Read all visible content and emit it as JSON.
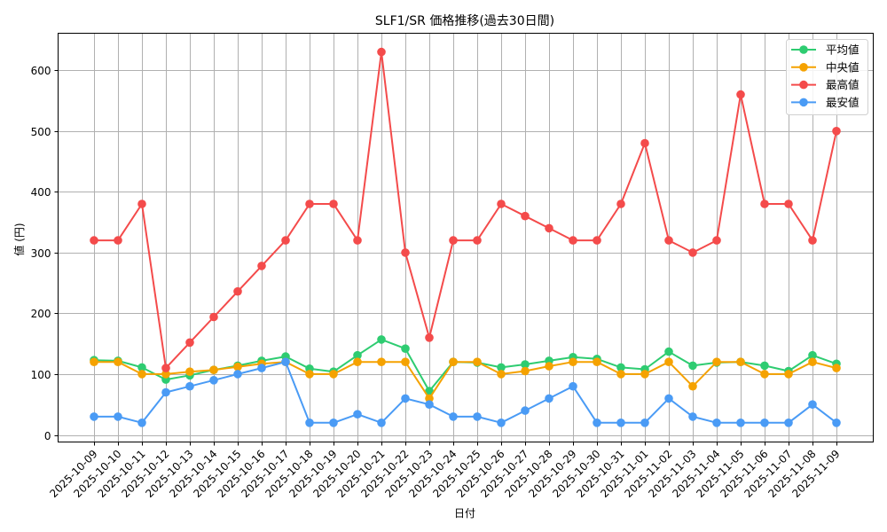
{
  "chart_data": {
    "type": "line",
    "title": "SLF1/SR 価格推移(過去30日間)",
    "xlabel": "日付",
    "ylabel": "値 (円)",
    "ylim": [
      -12,
      660
    ],
    "yticks": [
      0,
      100,
      200,
      300,
      400,
      500,
      600
    ],
    "grid": true,
    "legend_position": "upper right",
    "categories": [
      "2025-10-09",
      "2025-10-10",
      "2025-10-11",
      "2025-10-12",
      "2025-10-13",
      "2025-10-14",
      "2025-10-15",
      "2025-10-16",
      "2025-10-17",
      "2025-10-18",
      "2025-10-19",
      "2025-10-20",
      "2025-10-21",
      "2025-10-22",
      "2025-10-23",
      "2025-10-24",
      "2025-10-25",
      "2025-10-26",
      "2025-10-27",
      "2025-10-28",
      "2025-10-29",
      "2025-10-30",
      "2025-10-31",
      "2025-11-01",
      "2025-11-02",
      "2025-11-03",
      "2025-11-04",
      "2025-11-05",
      "2025-11-06",
      "2025-11-07",
      "2025-11-08",
      "2025-11-09"
    ],
    "series": [
      {
        "name": "平均値",
        "color": "#2ecc71",
        "values": [
          123,
          122,
          111,
          91,
          98,
          107,
          114,
          122,
          129,
          109,
          104,
          131,
          157,
          142,
          72,
          120,
          119,
          111,
          116,
          122,
          128,
          125,
          111,
          108,
          137,
          114,
          119,
          120,
          114,
          105,
          131,
          117
        ]
      },
      {
        "name": "中央値",
        "color": "#f5a200",
        "values": [
          120,
          120,
          100,
          100,
          104,
          107,
          112,
          117,
          120,
          100,
          100,
          120,
          120,
          120,
          60,
          120,
          120,
          100,
          105,
          113,
          120,
          120,
          100,
          100,
          120,
          80,
          120,
          120,
          100,
          100,
          120,
          110
        ]
      },
      {
        "name": "最高値",
        "color": "#f44b4b",
        "values": [
          320,
          320,
          380,
          110,
          152,
          194,
          236,
          278,
          320,
          380,
          380,
          320,
          630,
          300,
          160,
          320,
          320,
          380,
          360,
          340,
          320,
          320,
          380,
          480,
          320,
          300,
          320,
          560,
          380,
          380,
          320,
          500
        ]
      },
      {
        "name": "最安値",
        "color": "#4a9bf5",
        "values": [
          30,
          30,
          20,
          70,
          80,
          90,
          100,
          110,
          120,
          20,
          20,
          34,
          20,
          60,
          50,
          30,
          30,
          20,
          40,
          60,
          80,
          20,
          20,
          20,
          60,
          30,
          20,
          20,
          20,
          20,
          50,
          20
        ]
      }
    ]
  }
}
